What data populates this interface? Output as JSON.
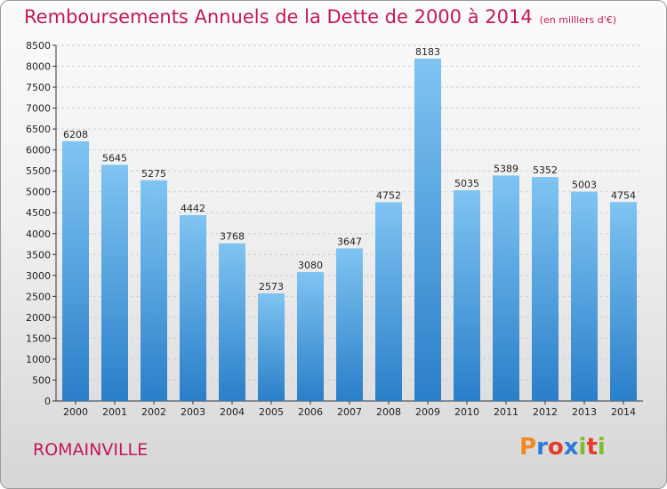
{
  "title": "Remboursements Annuels de la Dette de 2000 à 2014",
  "subtitle": "(en milliers d'€)",
  "city": "ROMAINVILLE",
  "logo": {
    "text": "Proxiti",
    "letters": [
      "P",
      "r",
      "o",
      "x",
      "i",
      "t",
      "i"
    ],
    "colors": [
      "#f08a24",
      "#2b7bd6",
      "#e5392b",
      "#2b7bd6",
      "#7bbf2a",
      "#e5392b",
      "#7bbf2a"
    ]
  },
  "colors": {
    "bar_light": "#7fc4f2",
    "bar_dark": "#2a7fc9",
    "title": "#c2185b",
    "axis": "#333333"
  },
  "chart_data": {
    "type": "bar",
    "title": "Remboursements Annuels de la Dette de 2000 à 2014",
    "subtitle": "(en milliers d'€)",
    "xlabel": "",
    "ylabel": "",
    "categories": [
      "2000",
      "2001",
      "2002",
      "2003",
      "2004",
      "2005",
      "2006",
      "2007",
      "2008",
      "2009",
      "2010",
      "2011",
      "2012",
      "2013",
      "2014"
    ],
    "values": [
      6208,
      5645,
      5275,
      4442,
      3768,
      2573,
      3080,
      3647,
      4752,
      8183,
      5035,
      5389,
      5352,
      5003,
      4754
    ],
    "ylim": [
      0,
      8500
    ],
    "yticks": [
      0,
      500,
      1000,
      1500,
      2000,
      2500,
      3000,
      3500,
      4000,
      4500,
      5000,
      5500,
      6000,
      6500,
      7000,
      7500,
      8000,
      8500
    ],
    "grid": true,
    "data_labels": true
  }
}
